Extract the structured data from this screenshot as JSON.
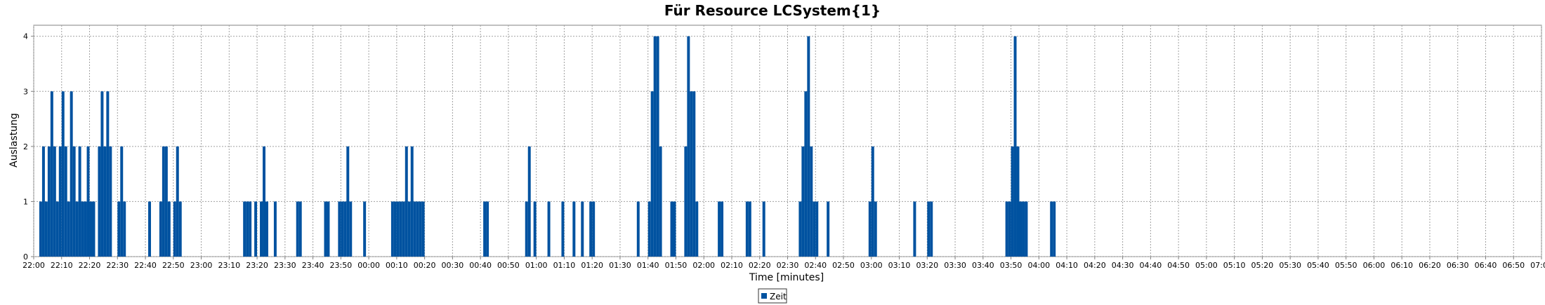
{
  "chart_data": {
    "type": "bar",
    "title": "Für Resource LCSystem{1}",
    "xlabel": "Time [minutes]",
    "ylabel": "Auslastung",
    "ylim": [
      0,
      4.2
    ],
    "y_ticks": [
      0,
      1,
      2,
      3,
      4
    ],
    "grid": true,
    "legend_placement": "bottom-center",
    "bar_color": "#0052a0",
    "x_range_minutes": [
      0,
      540
    ],
    "x_ticks": [
      "22:00",
      "22:10",
      "22:20",
      "22:30",
      "22:40",
      "22:50",
      "23:00",
      "23:10",
      "23:20",
      "23:30",
      "23:40",
      "23:50",
      "00:00",
      "00:10",
      "00:20",
      "00:30",
      "00:40",
      "00:50",
      "01:00",
      "01:10",
      "01:20",
      "01:30",
      "01:40",
      "01:50",
      "02:00",
      "02:10",
      "02:20",
      "02:30",
      "02:40",
      "02:50",
      "03:00",
      "03:10",
      "03:20",
      "03:30",
      "03:40",
      "03:50",
      "04:00",
      "04:10",
      "04:20",
      "04:30",
      "04:40",
      "04:50",
      "05:00",
      "05:10",
      "05:20",
      "05:30",
      "05:40",
      "05:50",
      "06:00",
      "06:10",
      "06:20",
      "06:30",
      "06:40",
      "06:50",
      "07:00"
    ],
    "series": [
      {
        "name": "Zeit",
        "points": [
          {
            "t": "22:02",
            "v": 1
          },
          {
            "t": "22:03",
            "v": 2
          },
          {
            "t": "22:04",
            "v": 1
          },
          {
            "t": "22:05",
            "v": 2
          },
          {
            "t": "22:06",
            "v": 3
          },
          {
            "t": "22:07",
            "v": 2
          },
          {
            "t": "22:08",
            "v": 1
          },
          {
            "t": "22:09",
            "v": 2
          },
          {
            "t": "22:10",
            "v": 3
          },
          {
            "t": "22:11",
            "v": 2
          },
          {
            "t": "22:12",
            "v": 1
          },
          {
            "t": "22:13",
            "v": 3
          },
          {
            "t": "22:14",
            "v": 2
          },
          {
            "t": "22:15",
            "v": 1
          },
          {
            "t": "22:16",
            "v": 2
          },
          {
            "t": "22:17",
            "v": 1
          },
          {
            "t": "22:18",
            "v": 1
          },
          {
            "t": "22:19",
            "v": 2
          },
          {
            "t": "22:20",
            "v": 1
          },
          {
            "t": "22:21",
            "v": 1
          },
          {
            "t": "22:23",
            "v": 2
          },
          {
            "t": "22:24",
            "v": 3
          },
          {
            "t": "22:25",
            "v": 2
          },
          {
            "t": "22:26",
            "v": 3
          },
          {
            "t": "22:27",
            "v": 2
          },
          {
            "t": "22:30",
            "v": 1
          },
          {
            "t": "22:31",
            "v": 2
          },
          {
            "t": "22:32",
            "v": 1
          },
          {
            "t": "22:41",
            "v": 1
          },
          {
            "t": "22:45",
            "v": 1
          },
          {
            "t": "22:46",
            "v": 2
          },
          {
            "t": "22:47",
            "v": 2
          },
          {
            "t": "22:48",
            "v": 1
          },
          {
            "t": "22:50",
            "v": 1
          },
          {
            "t": "22:51",
            "v": 2
          },
          {
            "t": "22:52",
            "v": 1
          },
          {
            "t": "23:15",
            "v": 1
          },
          {
            "t": "23:16",
            "v": 1
          },
          {
            "t": "23:17",
            "v": 1
          },
          {
            "t": "23:19",
            "v": 1
          },
          {
            "t": "23:21",
            "v": 1
          },
          {
            "t": "23:22",
            "v": 2
          },
          {
            "t": "23:23",
            "v": 1
          },
          {
            "t": "23:26",
            "v": 1
          },
          {
            "t": "23:34",
            "v": 1
          },
          {
            "t": "23:35",
            "v": 1
          },
          {
            "t": "23:44",
            "v": 1
          },
          {
            "t": "23:45",
            "v": 1
          },
          {
            "t": "23:49",
            "v": 1
          },
          {
            "t": "23:50",
            "v": 1
          },
          {
            "t": "23:51",
            "v": 1
          },
          {
            "t": "23:52",
            "v": 2
          },
          {
            "t": "23:53",
            "v": 1
          },
          {
            "t": "23:58",
            "v": 1
          },
          {
            "t": "00:08",
            "v": 1
          },
          {
            "t": "00:09",
            "v": 1
          },
          {
            "t": "00:10",
            "v": 1
          },
          {
            "t": "00:11",
            "v": 1
          },
          {
            "t": "00:12",
            "v": 1
          },
          {
            "t": "00:13",
            "v": 2
          },
          {
            "t": "00:14",
            "v": 1
          },
          {
            "t": "00:15",
            "v": 2
          },
          {
            "t": "00:16",
            "v": 1
          },
          {
            "t": "00:17",
            "v": 1
          },
          {
            "t": "00:18",
            "v": 1
          },
          {
            "t": "00:19",
            "v": 1
          },
          {
            "t": "00:41",
            "v": 1
          },
          {
            "t": "00:42",
            "v": 1
          },
          {
            "t": "00:56",
            "v": 1
          },
          {
            "t": "00:57",
            "v": 2
          },
          {
            "t": "00:59",
            "v": 1
          },
          {
            "t": "01:04",
            "v": 1
          },
          {
            "t": "01:09",
            "v": 1
          },
          {
            "t": "01:13",
            "v": 1
          },
          {
            "t": "01:16",
            "v": 1
          },
          {
            "t": "01:19",
            "v": 1
          },
          {
            "t": "01:20",
            "v": 1
          },
          {
            "t": "01:36",
            "v": 1
          },
          {
            "t": "01:40",
            "v": 1
          },
          {
            "t": "01:41",
            "v": 3
          },
          {
            "t": "01:42",
            "v": 4
          },
          {
            "t": "01:43",
            "v": 4
          },
          {
            "t": "01:44",
            "v": 2
          },
          {
            "t": "01:48",
            "v": 1
          },
          {
            "t": "01:49",
            "v": 1
          },
          {
            "t": "01:53",
            "v": 2
          },
          {
            "t": "01:54",
            "v": 4
          },
          {
            "t": "01:55",
            "v": 3
          },
          {
            "t": "01:56",
            "v": 3
          },
          {
            "t": "01:57",
            "v": 1
          },
          {
            "t": "02:05",
            "v": 1
          },
          {
            "t": "02:06",
            "v": 1
          },
          {
            "t": "02:15",
            "v": 1
          },
          {
            "t": "02:16",
            "v": 1
          },
          {
            "t": "02:21",
            "v": 1
          },
          {
            "t": "02:34",
            "v": 1
          },
          {
            "t": "02:35",
            "v": 2
          },
          {
            "t": "02:36",
            "v": 3
          },
          {
            "t": "02:37",
            "v": 4
          },
          {
            "t": "02:38",
            "v": 2
          },
          {
            "t": "02:39",
            "v": 1
          },
          {
            "t": "02:40",
            "v": 1
          },
          {
            "t": "02:44",
            "v": 1
          },
          {
            "t": "02:59",
            "v": 1
          },
          {
            "t": "03:00",
            "v": 2
          },
          {
            "t": "03:01",
            "v": 1
          },
          {
            "t": "03:15",
            "v": 1
          },
          {
            "t": "03:20",
            "v": 1
          },
          {
            "t": "03:21",
            "v": 1
          },
          {
            "t": "03:48",
            "v": 1
          },
          {
            "t": "03:49",
            "v": 1
          },
          {
            "t": "03:50",
            "v": 2
          },
          {
            "t": "03:51",
            "v": 4
          },
          {
            "t": "03:52",
            "v": 2
          },
          {
            "t": "03:53",
            "v": 1
          },
          {
            "t": "03:54",
            "v": 1
          },
          {
            "t": "03:55",
            "v": 1
          },
          {
            "t": "04:04",
            "v": 1
          },
          {
            "t": "04:05",
            "v": 1
          }
        ]
      }
    ]
  }
}
